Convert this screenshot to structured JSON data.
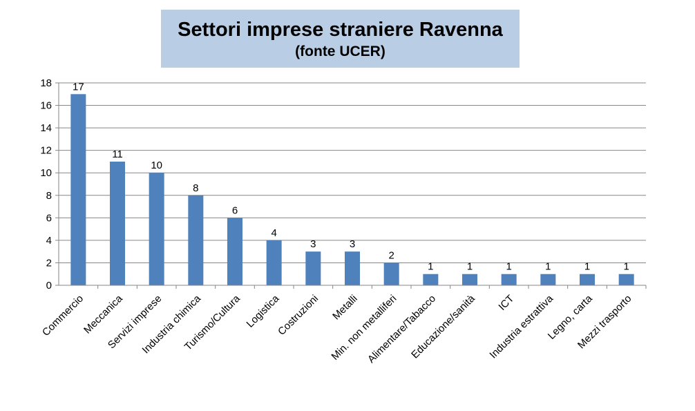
{
  "chart_data": {
    "type": "bar",
    "title": "Settori imprese straniere Ravenna",
    "subtitle": "(fonte UCER)",
    "categories": [
      "Commercio",
      "Meccanica",
      "Servizi imprese",
      "Industria chimica",
      "Turismo/Cultura",
      "Logistica",
      "Costruzioni",
      "Metalli",
      "Min. non metalliferi",
      "Alimentare/Tabacco",
      "Educazione/sanità",
      "ICT",
      "Industria estrattiva",
      "Legno, carta",
      "Mezzi trasporto"
    ],
    "values": [
      17,
      11,
      10,
      8,
      6,
      4,
      3,
      3,
      2,
      1,
      1,
      1,
      1,
      1,
      1
    ],
    "yticks": [
      "0",
      "2",
      "4",
      "6",
      "8",
      "10",
      "12",
      "14",
      "16",
      "18"
    ],
    "ylim": [
      0,
      18
    ],
    "grid": true,
    "data_labels": true,
    "bar_color": "#4f81bd",
    "title_background": "#b9cde5"
  }
}
